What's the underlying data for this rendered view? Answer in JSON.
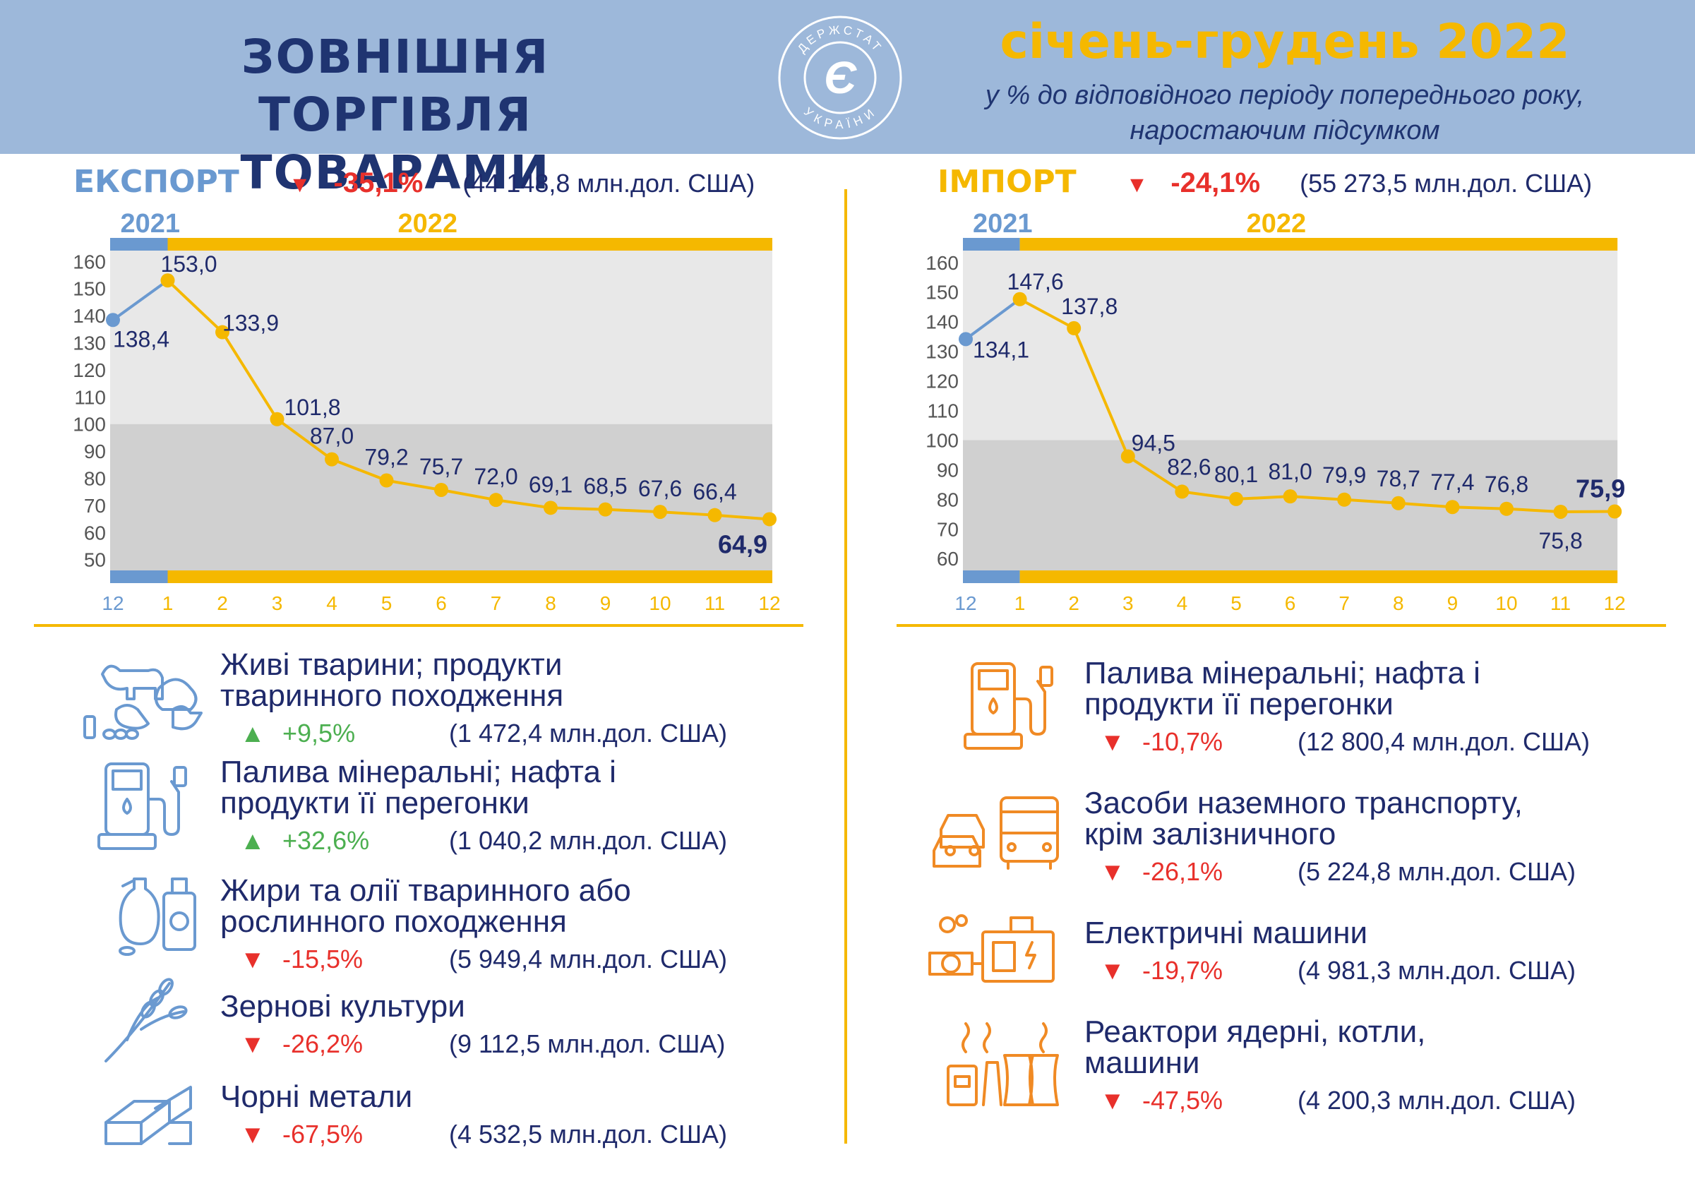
{
  "header": {
    "title_line1": "ЗОВНІШНЯ ТОРГІВЛЯ",
    "title_line2": "ТОВАРАМИ",
    "logo": {
      "top_text": "ДЕРЖСТАТ",
      "bottom_text": "УКРАЇНИ",
      "symbol": "Є",
      "icon": "derzhstat-logo"
    },
    "period": "січень-грудень 2022",
    "subtitle_line1": "у % до відповідного періоду попереднього року,",
    "subtitle_line2": "наростаючим підсумком"
  },
  "export": {
    "label": "ЕКСПОРТ",
    "change": "-35,1%",
    "amount": "(44 148,8 млн.дол. США)",
    "arrow": "down"
  },
  "import": {
    "label": "ІМПОРТ",
    "change": "-24,1%",
    "amount": "(55 273,5 млн.дол. США)",
    "arrow": "down"
  },
  "colors": {
    "navy": "#1f2a6b",
    "blue": "#6a99d0",
    "yellow": "#f5b800",
    "red": "#e8302b",
    "green": "#4caf50",
    "orange": "#f08a24",
    "header_bg": "#9db8da",
    "band_light": "#e8e8e8",
    "band_dark": "#d0d0d0"
  },
  "chart_data": [
    {
      "type": "line",
      "panel": "export",
      "year_labels": [
        "2021",
        "2022"
      ],
      "x": [
        "12",
        "1",
        "2",
        "3",
        "4",
        "5",
        "6",
        "7",
        "8",
        "9",
        "10",
        "11",
        "12"
      ],
      "values": [
        138.4,
        153.0,
        133.9,
        101.8,
        87.0,
        79.2,
        75.7,
        72.0,
        69.1,
        68.5,
        67.6,
        66.4,
        64.9
      ],
      "labels": [
        "138,4",
        "153,0",
        "133,9",
        "101,8",
        "87,0",
        "79,2",
        "75,7",
        "72,0",
        "69,1",
        "68,5",
        "67,6",
        "66,4",
        "64,9"
      ],
      "y_ticks": [
        "50",
        "60",
        "70",
        "80",
        "90",
        "100",
        "110",
        "120",
        "130",
        "140",
        "150",
        "160"
      ],
      "ylim": [
        46,
        164
      ],
      "shading": "above 100 light, below 100 darker"
    },
    {
      "type": "line",
      "panel": "import",
      "year_labels": [
        "2021",
        "2022"
      ],
      "x": [
        "12",
        "1",
        "2",
        "3",
        "4",
        "5",
        "6",
        "7",
        "8",
        "9",
        "10",
        "11",
        "12"
      ],
      "values": [
        134.1,
        147.6,
        137.8,
        94.5,
        82.6,
        80.1,
        81.0,
        79.9,
        78.7,
        77.4,
        76.8,
        75.8,
        75.9
      ],
      "labels": [
        "134,1",
        "147,6",
        "137,8",
        "94,5",
        "82,6",
        "80,1",
        "81,0",
        "79,9",
        "78,7",
        "77,4",
        "76,8",
        "75,8",
        "75,9"
      ],
      "y_ticks": [
        "60",
        "70",
        "80",
        "90",
        "100",
        "110",
        "120",
        "130",
        "140",
        "150",
        "160"
      ],
      "ylim": [
        56,
        164
      ],
      "shading": "above 100 light, below 100 darker"
    }
  ],
  "export_categories": [
    {
      "name": "Живі тварини; продукти тваринного походження",
      "change": "+9,5%",
      "dir": "up",
      "amount": "(1 472,4 млн.дол. США)",
      "icon": "livestock-icon"
    },
    {
      "name": "Палива мінеральні; нафта і продукти її перегонки",
      "change": "+32,6%",
      "dir": "up",
      "amount": "(1 040,2 млн.дол. США)",
      "icon": "fuel-pump-icon"
    },
    {
      "name": "Жири та олії тваринного або рослинного походження",
      "change": "-15,5%",
      "dir": "down",
      "amount": "(5 949,4 млн.дол. США)",
      "icon": "oil-bottles-icon"
    },
    {
      "name": "Зернові культури",
      "change": "-26,2%",
      "dir": "down",
      "amount": "(9 112,5 млн.дол. США)",
      "icon": "wheat-icon"
    },
    {
      "name": "Чорні метали",
      "change": "-67,5%",
      "dir": "down",
      "amount": "(4 532,5 млн.дол. США)",
      "icon": "metal-beams-icon"
    }
  ],
  "import_categories": [
    {
      "name": "Палива мінеральні; нафта і продукти її перегонки",
      "change": "-10,7%",
      "dir": "down",
      "amount": "(12 800,4 млн.дол. США)",
      "icon": "fuel-pump-icon"
    },
    {
      "name": "Засоби наземного транспорту, крім залізничного",
      "change": "-26,1%",
      "dir": "down",
      "amount": "(5 224,8 млн.дол. США)",
      "icon": "vehicles-icon"
    },
    {
      "name": "Електричні машини",
      "change": "-19,7%",
      "dir": "down",
      "amount": "(4 981,3 млн.дол. США)",
      "icon": "electric-machine-icon"
    },
    {
      "name": "Реактори ядерні, котли, машини",
      "change": "-47,5%",
      "dir": "down",
      "amount": "(4 200,3 млн.дол. США)",
      "icon": "power-plant-icon"
    }
  ]
}
